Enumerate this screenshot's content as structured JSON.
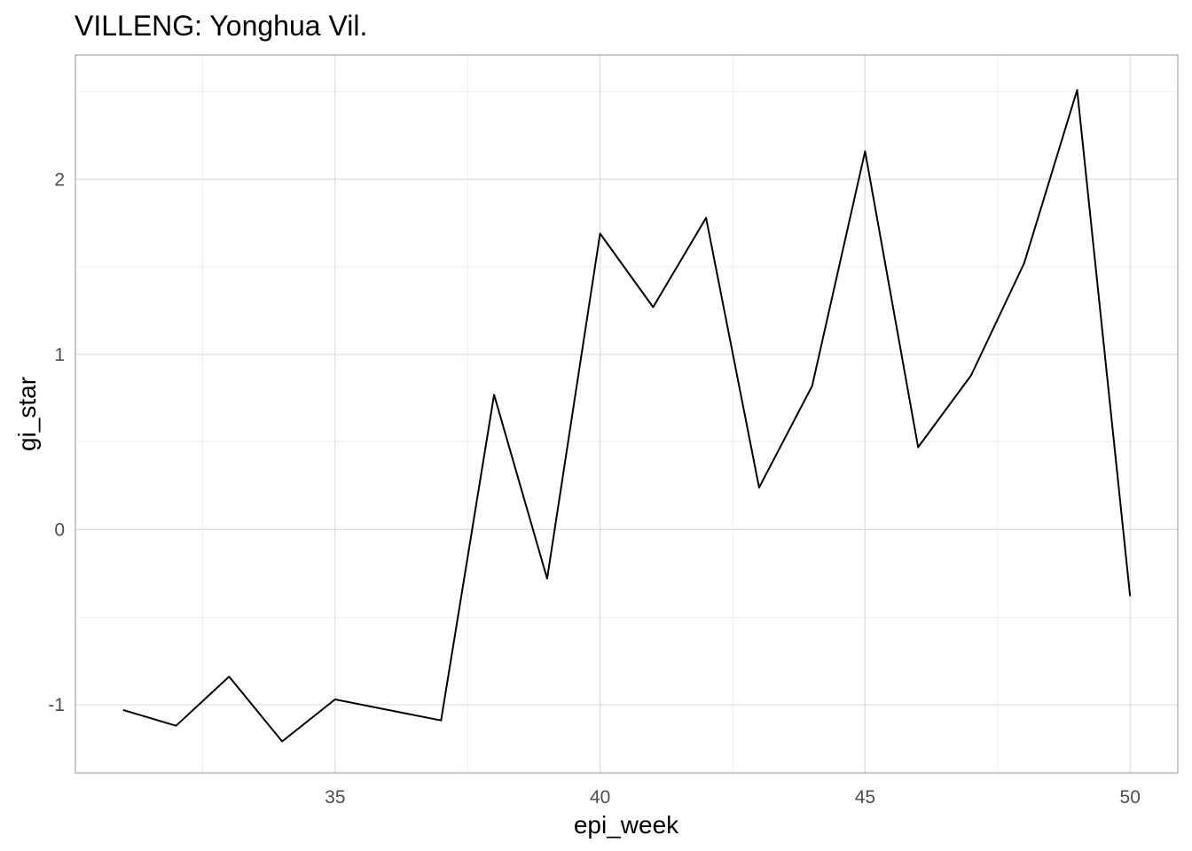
{
  "chart_data": {
    "type": "line",
    "title": "VILLENG: Yonghua Vil.",
    "xlabel": "epi_week",
    "ylabel": "gi_star",
    "x": [
      31,
      32,
      33,
      34,
      35,
      36,
      37,
      38,
      39,
      40,
      41,
      42,
      43,
      44,
      45,
      46,
      47,
      48,
      49,
      50
    ],
    "series": [
      {
        "values": [
          -1.03,
          -1.12,
          -0.84,
          -1.21,
          -0.97,
          -1.03,
          -1.09,
          0.77,
          -0.28,
          1.69,
          1.27,
          1.78,
          0.24,
          0.82,
          2.16,
          0.47,
          0.88,
          1.52,
          2.51,
          -0.38
        ]
      }
    ],
    "xlim": [
      30.1,
      50.9
    ],
    "ylim": [
      -1.39,
      2.71
    ],
    "x_ticks": [
      35,
      40,
      45,
      50
    ],
    "x_tick_labels": [
      "35",
      "40",
      "45",
      "50"
    ],
    "y_ticks": [
      -1,
      0,
      1,
      2
    ],
    "y_tick_labels": [
      "-1",
      "0",
      "1",
      "2"
    ],
    "grid": true,
    "line_color": "#000000"
  }
}
